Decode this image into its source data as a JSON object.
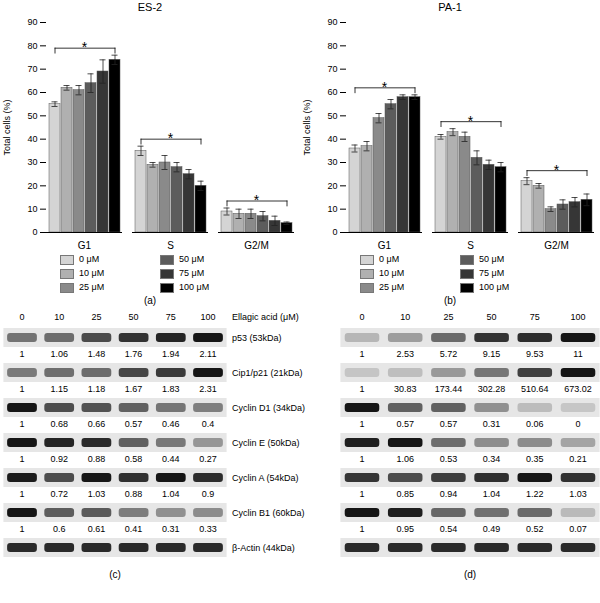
{
  "chart_data": [
    {
      "type": "bar",
      "panel": "(a)",
      "title": "ES-2",
      "y_label": "Total cells (%)",
      "categories": [
        "G1",
        "S",
        "G2/M"
      ],
      "ylim": [
        0,
        90
      ],
      "yticks": [
        0,
        10,
        20,
        30,
        40,
        50,
        60,
        70,
        80,
        90
      ],
      "grid": false,
      "legend": "bottom",
      "series": [
        {
          "name": "0 μM",
          "color": "#d4d4d4",
          "values": [
            55,
            35,
            9
          ],
          "errors": [
            1,
            2,
            1.5
          ]
        },
        {
          "name": "10 μM",
          "color": "#b0b0b0",
          "values": [
            62,
            29,
            8
          ],
          "errors": [
            1,
            1,
            2
          ]
        },
        {
          "name": "25 μM",
          "color": "#8a8a8a",
          "values": [
            61,
            30,
            8
          ],
          "errors": [
            2,
            3,
            2
          ]
        },
        {
          "name": "50 μM",
          "color": "#5c5c5c",
          "values": [
            64,
            28,
            7
          ],
          "errors": [
            4,
            2,
            2
          ]
        },
        {
          "name": "75 μM",
          "color": "#363636",
          "values": [
            69,
            25,
            5
          ],
          "errors": [
            5,
            2,
            2
          ]
        },
        {
          "name": "100 μM",
          "color": "#000000",
          "values": [
            74,
            20,
            4
          ],
          "errors": [
            2,
            2,
            0.5
          ]
        }
      ],
      "annotations": [
        {
          "text": "*",
          "category": "G1"
        },
        {
          "text": "*",
          "category": "S"
        },
        {
          "text": "*",
          "category": "G2/M"
        }
      ]
    },
    {
      "type": "bar",
      "panel": "(b)",
      "title": "PA-1",
      "y_label": "Total cells (%)",
      "categories": [
        "G1",
        "S",
        "G2/M"
      ],
      "ylim": [
        0,
        90
      ],
      "yticks": [
        0,
        10,
        20,
        30,
        40,
        50,
        60,
        70,
        80,
        90
      ],
      "grid": false,
      "legend": "bottom",
      "series": [
        {
          "name": "0 μM",
          "color": "#d4d4d4",
          "values": [
            36,
            41,
            22
          ],
          "errors": [
            1.5,
            1,
            1.5
          ]
        },
        {
          "name": "10 μM",
          "color": "#b0b0b0",
          "values": [
            37,
            43,
            20
          ],
          "errors": [
            2,
            1.5,
            1
          ]
        },
        {
          "name": "25 μM",
          "color": "#8a8a8a",
          "values": [
            49,
            41,
            10
          ],
          "errors": [
            2,
            2,
            1
          ]
        },
        {
          "name": "50 μM",
          "color": "#5c5c5c",
          "values": [
            55,
            32,
            12
          ],
          "errors": [
            2,
            3,
            2
          ]
        },
        {
          "name": "75 μM",
          "color": "#363636",
          "values": [
            58,
            29,
            13
          ],
          "errors": [
            1,
            2,
            2
          ]
        },
        {
          "name": "100 μM",
          "color": "#000000",
          "values": [
            58,
            28,
            14
          ],
          "errors": [
            1,
            2,
            2.5
          ]
        }
      ],
      "annotations": [
        {
          "text": "*",
          "category": "G1"
        },
        {
          "text": "*",
          "category": "S"
        },
        {
          "text": "*",
          "category": "G2/M"
        }
      ]
    }
  ],
  "blots": {
    "lane_title": "Ellagic acid (μM)",
    "lanes": [
      0,
      10,
      25,
      50,
      75,
      100
    ],
    "proteins": [
      "p53 (53kDa)",
      "Cip1/p21 (21kDa)",
      "Cyclin D1 (34kDa)",
      "Cyclin E (50kDa)",
      "Cyclin A (54kDa)",
      "Cyclin B1 (60kDa)",
      "β-Actin (44kDa)"
    ],
    "panels": [
      {
        "panel": "(c)",
        "values": [
          [
            1,
            1.06,
            1.48,
            1.76,
            1.94,
            2.11
          ],
          [
            1,
            1.15,
            1.18,
            1.67,
            1.83,
            2.31
          ],
          [
            1,
            0.68,
            0.66,
            0.57,
            0.46,
            0.4
          ],
          [
            1,
            0.92,
            0.88,
            0.58,
            0.44,
            0.27
          ],
          [
            1,
            0.72,
            1.03,
            0.88,
            1.04,
            0.9
          ],
          [
            1,
            0.6,
            0.61,
            0.41,
            0.31,
            0.33
          ]
        ]
      },
      {
        "panel": "(d)",
        "values": [
          [
            1,
            2.53,
            5.72,
            9.15,
            9.53,
            11
          ],
          [
            1,
            30.83,
            173.44,
            302.28,
            510.64,
            673.02
          ],
          [
            1,
            0.57,
            0.57,
            0.31,
            0.06,
            0
          ],
          [
            1,
            1.06,
            0.53,
            0.34,
            0.35,
            0.21
          ],
          [
            1,
            0.85,
            0.94,
            1.04,
            1.22,
            1.03
          ],
          [
            1,
            0.95,
            0.54,
            0.49,
            0.52,
            0.07
          ]
        ]
      }
    ]
  }
}
